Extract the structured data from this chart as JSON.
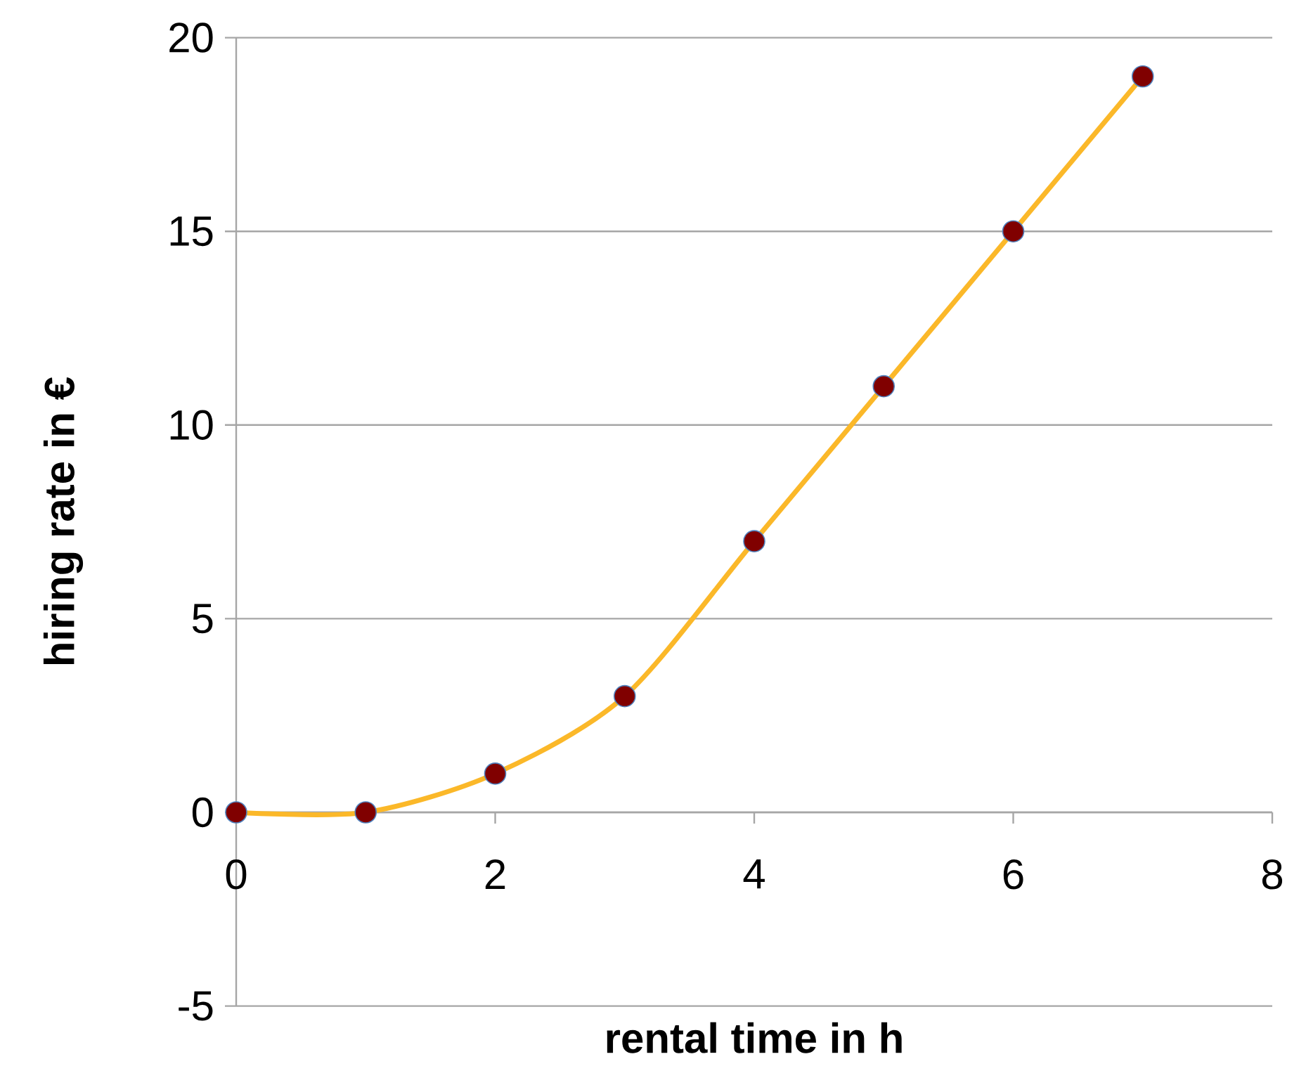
{
  "chart_data": {
    "type": "line",
    "xlabel": "rental time in h",
    "ylabel": "hiring rate in €",
    "x": [
      0,
      1,
      2,
      3,
      4,
      5,
      6,
      7
    ],
    "series": [
      {
        "color": "#fbb829",
        "values": [
          0,
          0,
          1,
          3,
          7,
          11,
          15,
          19
        ]
      }
    ],
    "marker": "circle",
    "line_style": "solid",
    "xlim": [
      0,
      8
    ],
    "xticks": [
      0,
      2,
      4,
      6,
      8
    ],
    "ylim": [
      -5,
      20
    ],
    "yticks": [
      -5,
      0,
      5,
      10,
      15,
      20
    ],
    "grid": "y"
  }
}
